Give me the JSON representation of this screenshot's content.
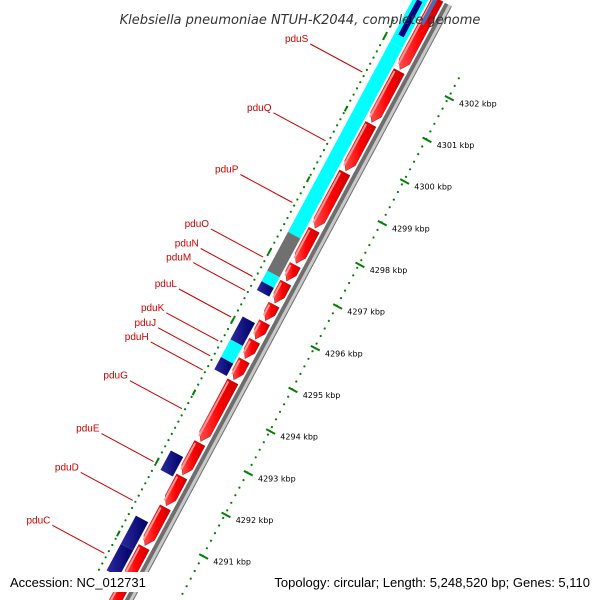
{
  "title": "Klebsiella pneumoniae NTUH-K2044, complete genome",
  "footer": {
    "accession": "Accession: NC_012731",
    "summary": "Topology: circular; Length: 5,248,520 bp; Genes: 5,110"
  },
  "colors": {
    "forward_cds": "#ff0000",
    "reverse_cds": "#000080",
    "cyan_cds": "#00ffff",
    "gray_cds": "#707070",
    "label": "#cc0000",
    "ticks": "#008000",
    "backbone": "#888888"
  },
  "kbp_ticks": [
    "4291 kbp",
    "4292 kbp",
    "4293 kbp",
    "4294 kbp",
    "4295 kbp",
    "4296 kbp",
    "4297 kbp",
    "4298 kbp",
    "4299 kbp",
    "4300 kbp",
    "4301 kbp",
    "4302 kbp"
  ],
  "gene_labels": [
    "pduC",
    "pduD",
    "pduE",
    "pduG",
    "pduH",
    "pduJ",
    "pduK",
    "pduL",
    "pduM",
    "pduN",
    "pduO",
    "pduP",
    "pduQ",
    "pduS"
  ]
}
